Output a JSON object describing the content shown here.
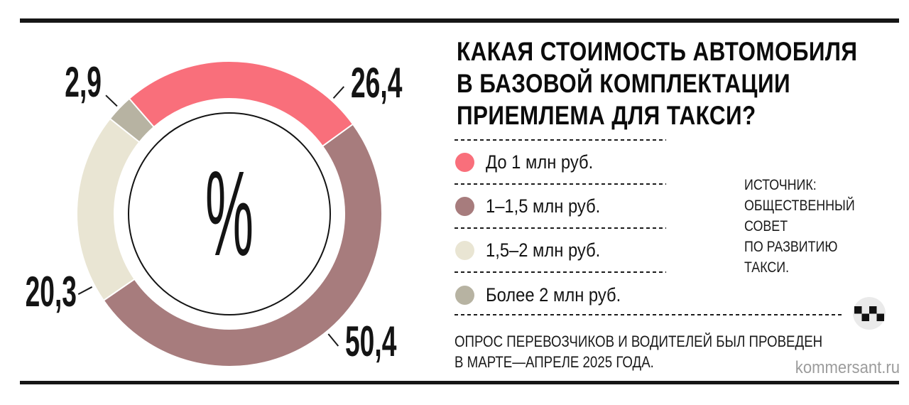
{
  "page": {
    "background": "#ffffff",
    "frame_color": "#161616"
  },
  "header": {
    "title_lines": [
      "КАКАЯ СТОИМОСТЬ АВТОМОБИЛЯ",
      "В БАЗОВОЙ КОМПЛЕКТАЦИИ",
      "ПРИЕМЛЕМА ДЛЯ ТАКСИ?"
    ]
  },
  "chart_data": {
    "type": "pie",
    "style": "donut",
    "unit": "%",
    "center_label": "%",
    "title": "КАКАЯ СТОИМОСТЬ АВТОМОБИЛЯ В БАЗОВОЙ КОМПЛЕКТАЦИИ ПРИЕМЛЕМА ДЛЯ ТАКСИ?",
    "direction": "clockwise",
    "start_angle_deg": -41,
    "legend_position": "right",
    "segments": [
      {
        "label": "До 1 млн руб.",
        "value": 26.4,
        "display_value": "26,4",
        "color": "#f96f7b"
      },
      {
        "label": "1–1,5 млн руб.",
        "value": 50.4,
        "display_value": "50,4",
        "color": "#a77c7d"
      },
      {
        "label": "1,5–2 млн руб.",
        "value": 20.3,
        "display_value": "20,3",
        "color": "#e9e5d3"
      },
      {
        "label": "Более 2 млн руб.",
        "value": 2.9,
        "display_value": "2,9",
        "color": "#b7b3a2"
      }
    ]
  },
  "source": {
    "lines": [
      "ИСТОЧНИК:",
      "ОБЩЕСТВЕННЫЙ",
      "СОВЕТ",
      "ПО РАЗВИТИЮ",
      "ТАКСИ."
    ]
  },
  "footnote": {
    "lines": [
      "ОПРОС ПЕРЕВОЗЧИКОВ И ВОДИТЕЛЕЙ БЫЛ ПРОВЕДЕН",
      "В МАРТЕ—АПРЕЛЕ 2025 ГОДА."
    ]
  },
  "branding": {
    "site": "kommersant.ru",
    "logo": "taxi-checker-icon"
  }
}
